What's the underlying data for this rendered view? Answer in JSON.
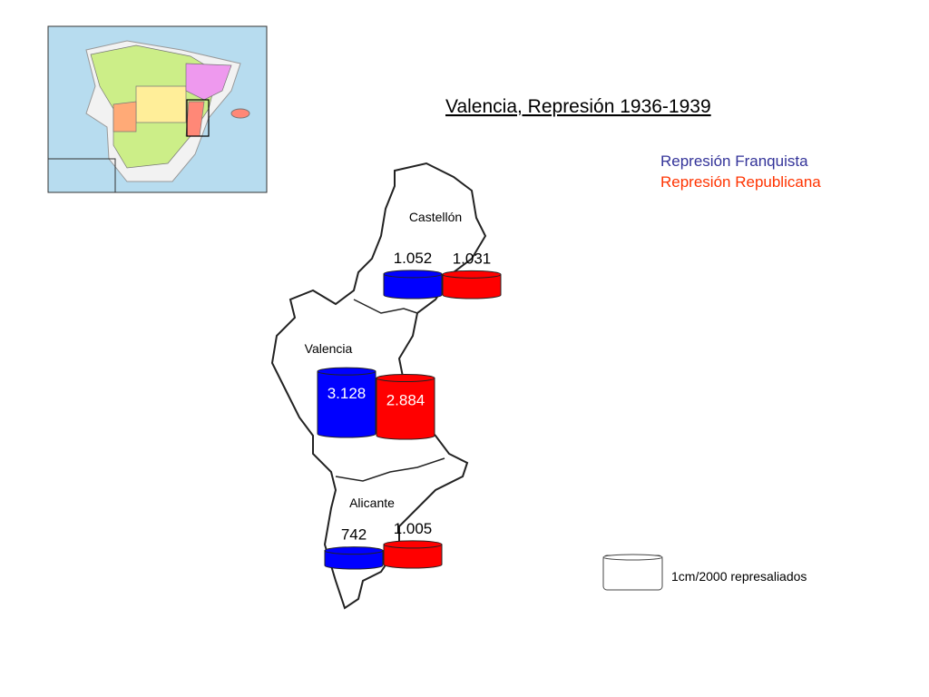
{
  "chart_data": {
    "type": "cylinder",
    "title": "Valencia, Represión 1936-1939",
    "categories": [
      "Castellón",
      "Valencia",
      "Alicante"
    ],
    "series": [
      {
        "name": "Represión Franquista",
        "color": "#0000ff",
        "values": [
          1052,
          3128,
          742
        ],
        "value_labels": [
          "1.052",
          "3.128",
          "742"
        ]
      },
      {
        "name": "Represión Republicana",
        "color": "#ff0000",
        "values": [
          1031,
          2884,
          1005
        ],
        "value_labels": [
          "1.031",
          "2.884",
          "1.005"
        ]
      }
    ],
    "annotation": "1cm/2000 represaliados"
  }
}
